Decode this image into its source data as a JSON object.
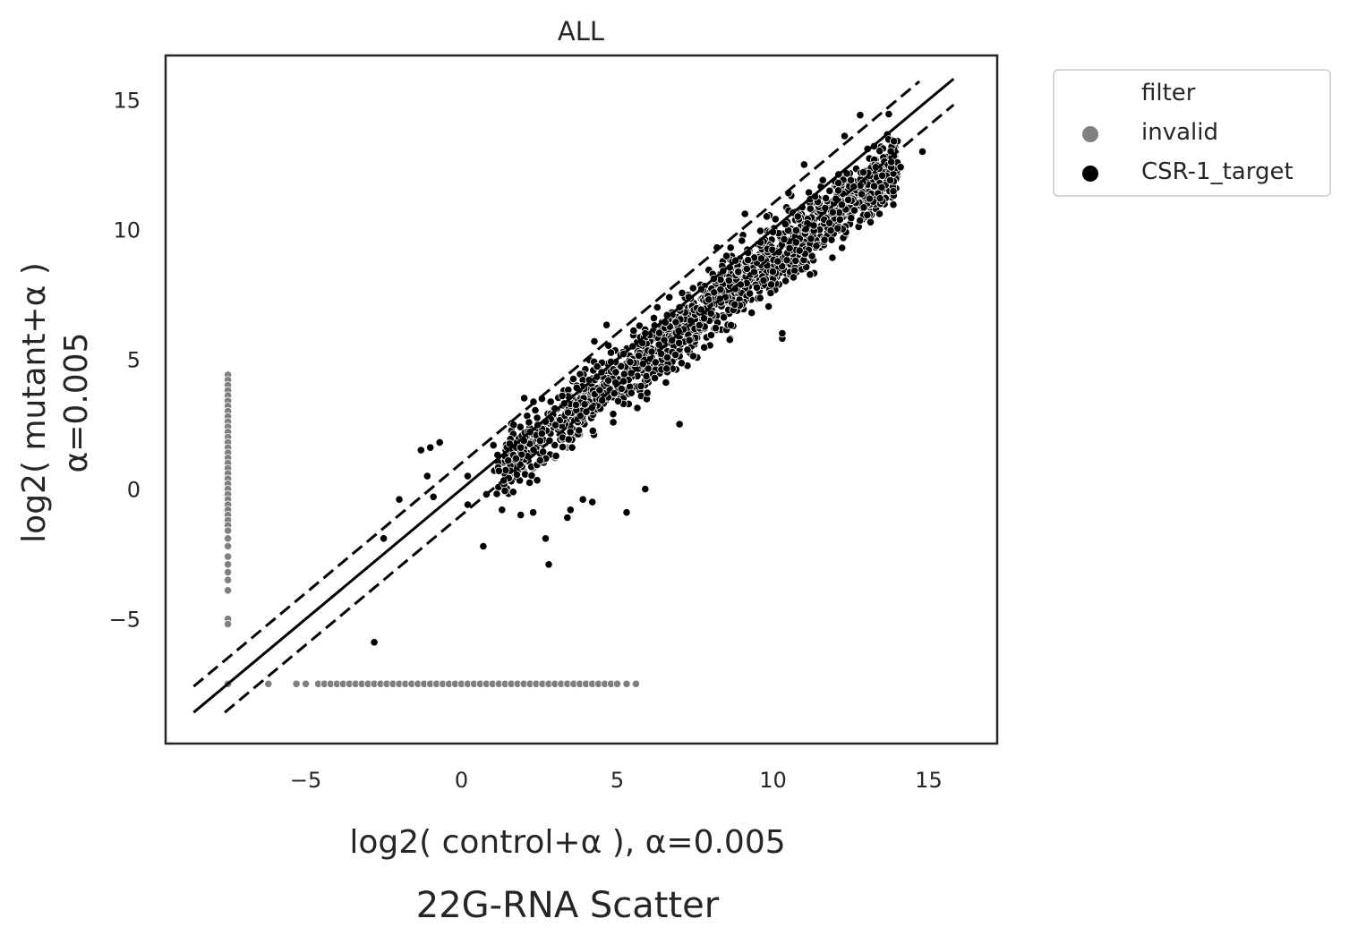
{
  "chart_data": {
    "type": "scatter",
    "title": "ALL",
    "figure_title": "22G-RNA Scatter",
    "xlabel": "log2( control+α ), α=0.005",
    "ylabel_lines": [
      "log2( mutant+α )",
      "α=0.005"
    ],
    "xlim": [
      -9.5,
      17.2
    ],
    "ylim": [
      -9.8,
      16.7
    ],
    "xticks": [
      -5,
      0,
      5,
      10,
      15
    ],
    "yticks": [
      -5,
      0,
      5,
      10,
      15
    ],
    "xtick_labels": [
      "−5",
      "0",
      "5",
      "10",
      "15"
    ],
    "ytick_labels": [
      "−5",
      "0",
      "5",
      "10",
      "15"
    ],
    "grid": false,
    "legend": {
      "title": "filter",
      "placement": "outside-top-right",
      "entries": [
        {
          "name": "invalid",
          "color": "#808080"
        },
        {
          "name": "CSR-1_target",
          "color": "#000000"
        }
      ]
    },
    "reference_lines": [
      {
        "style": "solid",
        "offset": 0,
        "x_range": [
          -8.6,
          15.8
        ]
      },
      {
        "style": "dashed",
        "offset": 1,
        "x_range": [
          -8.6,
          14.7
        ]
      },
      {
        "style": "dashed",
        "offset": -1,
        "x_range": [
          -7.6,
          15.8
        ]
      }
    ],
    "series": [
      {
        "name": "invalid",
        "color": "#808080",
        "points": [
          [
            -7.5,
            4.4
          ],
          [
            -7.5,
            4.2
          ],
          [
            -7.5,
            4.0
          ],
          [
            -7.5,
            3.8
          ],
          [
            -7.5,
            3.6
          ],
          [
            -7.5,
            3.4
          ],
          [
            -7.5,
            3.2
          ],
          [
            -7.5,
            3.0
          ],
          [
            -7.5,
            2.8
          ],
          [
            -7.5,
            2.6
          ],
          [
            -7.5,
            2.4
          ],
          [
            -7.5,
            2.2
          ],
          [
            -7.5,
            2.0
          ],
          [
            -7.5,
            1.8
          ],
          [
            -7.5,
            1.6
          ],
          [
            -7.5,
            1.4
          ],
          [
            -7.5,
            1.2
          ],
          [
            -7.5,
            1.0
          ],
          [
            -7.5,
            0.8
          ],
          [
            -7.5,
            0.6
          ],
          [
            -7.5,
            0.4
          ],
          [
            -7.5,
            0.2
          ],
          [
            -7.5,
            0.0
          ],
          [
            -7.5,
            -0.2
          ],
          [
            -7.5,
            -0.4
          ],
          [
            -7.5,
            -0.6
          ],
          [
            -7.5,
            -0.8
          ],
          [
            -7.5,
            -1.0
          ],
          [
            -7.5,
            -1.2
          ],
          [
            -7.5,
            -1.4
          ],
          [
            -7.5,
            -1.6
          ],
          [
            -7.5,
            -1.9
          ],
          [
            -7.5,
            -2.2
          ],
          [
            -7.5,
            -2.6
          ],
          [
            -7.5,
            -2.9
          ],
          [
            -7.5,
            -3.2
          ],
          [
            -7.5,
            -3.5
          ],
          [
            -7.5,
            -3.9
          ],
          [
            -7.5,
            -5.0
          ],
          [
            -7.5,
            -5.2
          ],
          [
            -7.5,
            -7.5
          ],
          [
            -6.2,
            -7.5
          ],
          [
            -5.3,
            -7.5
          ],
          [
            -5.0,
            -7.5
          ],
          [
            -4.6,
            -7.5
          ],
          [
            -4.4,
            -7.5
          ],
          [
            -4.2,
            -7.5
          ],
          [
            -4.0,
            -7.5
          ],
          [
            -3.8,
            -7.5
          ],
          [
            -3.6,
            -7.5
          ],
          [
            -3.4,
            -7.5
          ],
          [
            -3.2,
            -7.5
          ],
          [
            -3.0,
            -7.5
          ],
          [
            -2.8,
            -7.5
          ],
          [
            -2.6,
            -7.5
          ],
          [
            -2.4,
            -7.5
          ],
          [
            -2.2,
            -7.5
          ],
          [
            -2.0,
            -7.5
          ],
          [
            -1.8,
            -7.5
          ],
          [
            -1.6,
            -7.5
          ],
          [
            -1.4,
            -7.5
          ],
          [
            -1.2,
            -7.5
          ],
          [
            -1.0,
            -7.5
          ],
          [
            -0.8,
            -7.5
          ],
          [
            -0.6,
            -7.5
          ],
          [
            -0.4,
            -7.5
          ],
          [
            -0.2,
            -7.5
          ],
          [
            0.0,
            -7.5
          ],
          [
            0.2,
            -7.5
          ],
          [
            0.4,
            -7.5
          ],
          [
            0.6,
            -7.5
          ],
          [
            0.8,
            -7.5
          ],
          [
            1.0,
            -7.5
          ],
          [
            1.2,
            -7.5
          ],
          [
            1.4,
            -7.5
          ],
          [
            1.6,
            -7.5
          ],
          [
            1.8,
            -7.5
          ],
          [
            2.0,
            -7.5
          ],
          [
            2.2,
            -7.5
          ],
          [
            2.4,
            -7.5
          ],
          [
            2.6,
            -7.5
          ],
          [
            2.8,
            -7.5
          ],
          [
            3.0,
            -7.5
          ],
          [
            3.2,
            -7.5
          ],
          [
            3.4,
            -7.5
          ],
          [
            3.6,
            -7.5
          ],
          [
            3.8,
            -7.5
          ],
          [
            4.0,
            -7.5
          ],
          [
            4.2,
            -7.5
          ],
          [
            4.4,
            -7.5
          ],
          [
            4.6,
            -7.5
          ],
          [
            4.8,
            -7.5
          ],
          [
            5.0,
            -7.5
          ],
          [
            5.3,
            -7.5
          ],
          [
            5.6,
            -7.5
          ],
          [
            1.4,
            0.6
          ],
          [
            1.7,
            0.5
          ],
          [
            2.0,
            0.7
          ],
          [
            2.3,
            0.8
          ],
          [
            2.6,
            1.0
          ],
          [
            3.0,
            1.2
          ],
          [
            3.4,
            1.6
          ],
          [
            3.8,
            2.1
          ]
        ]
      },
      {
        "name": "CSR-1_target",
        "color": "#000000",
        "points": [
          [
            -2.8,
            -5.9
          ],
          [
            -2.5,
            -1.9
          ],
          [
            -2.0,
            -0.4
          ],
          [
            -1.3,
            1.5
          ],
          [
            -1.0,
            1.6
          ],
          [
            -0.7,
            1.8
          ],
          [
            -1.1,
            0.5
          ],
          [
            -0.9,
            -0.3
          ],
          [
            0.2,
            -0.6
          ],
          [
            0.7,
            -2.2
          ],
          [
            0.2,
            0.5
          ],
          [
            0.8,
            -0.2
          ],
          [
            1.3,
            -0.8
          ],
          [
            1.9,
            -1.0
          ],
          [
            2.3,
            -0.9
          ],
          [
            2.7,
            -1.9
          ],
          [
            2.8,
            -2.9
          ],
          [
            3.4,
            -1.1
          ],
          [
            3.5,
            -0.8
          ],
          [
            3.9,
            -0.4
          ],
          [
            4.2,
            -0.5
          ],
          [
            5.3,
            -0.9
          ],
          [
            5.9,
            0.0
          ],
          [
            7.0,
            2.5
          ],
          [
            10.3,
            5.8
          ],
          [
            10.3,
            6.0
          ],
          [
            12.8,
            14.4
          ],
          [
            11.0,
            12.5
          ],
          [
            12.3,
            13.6
          ],
          [
            11.6,
            11.9
          ],
          [
            10.5,
            11.4
          ],
          [
            9.8,
            10.5
          ],
          [
            9.1,
            10.6
          ],
          [
            8.2,
            9.3
          ],
          [
            1.2,
            0.7
          ],
          [
            1.5,
            1.1
          ],
          [
            1.9,
            1.6
          ],
          [
            2.2,
            2.2
          ],
          [
            2.7,
            2.6
          ],
          [
            3.0,
            3.1
          ],
          [
            3.3,
            3.3
          ],
          [
            3.7,
            3.9
          ],
          [
            4.1,
            4.2
          ],
          [
            4.5,
            4.5
          ],
          [
            4.8,
            4.9
          ],
          [
            5.2,
            5.2
          ],
          [
            5.5,
            5.5
          ],
          [
            5.9,
            6.0
          ],
          [
            6.2,
            6.3
          ],
          [
            6.6,
            6.7
          ],
          [
            7.0,
            7.0
          ],
          [
            7.3,
            7.4
          ],
          [
            7.7,
            7.7
          ],
          [
            8.1,
            8.1
          ],
          [
            8.4,
            8.4
          ],
          [
            8.8,
            8.8
          ],
          [
            9.2,
            9.1
          ],
          [
            9.6,
            9.5
          ],
          [
            10.0,
            9.9
          ],
          [
            10.4,
            10.2
          ],
          [
            10.8,
            10.5
          ],
          [
            11.2,
            10.8
          ],
          [
            11.7,
            11.2
          ],
          [
            12.1,
            11.5
          ],
          [
            12.5,
            11.9
          ],
          [
            12.9,
            12.2
          ],
          [
            13.3,
            12.4
          ],
          [
            13.8,
            12.6
          ],
          [
            14.1,
            12.4
          ],
          [
            14.8,
            13.0
          ]
        ],
        "band": {
          "x_range": [
            1.0,
            14.0
          ],
          "count": 1500,
          "center_slope": 0.92,
          "center_offset": -0.35,
          "spread": 0.75,
          "seed": 7
        }
      }
    ]
  }
}
